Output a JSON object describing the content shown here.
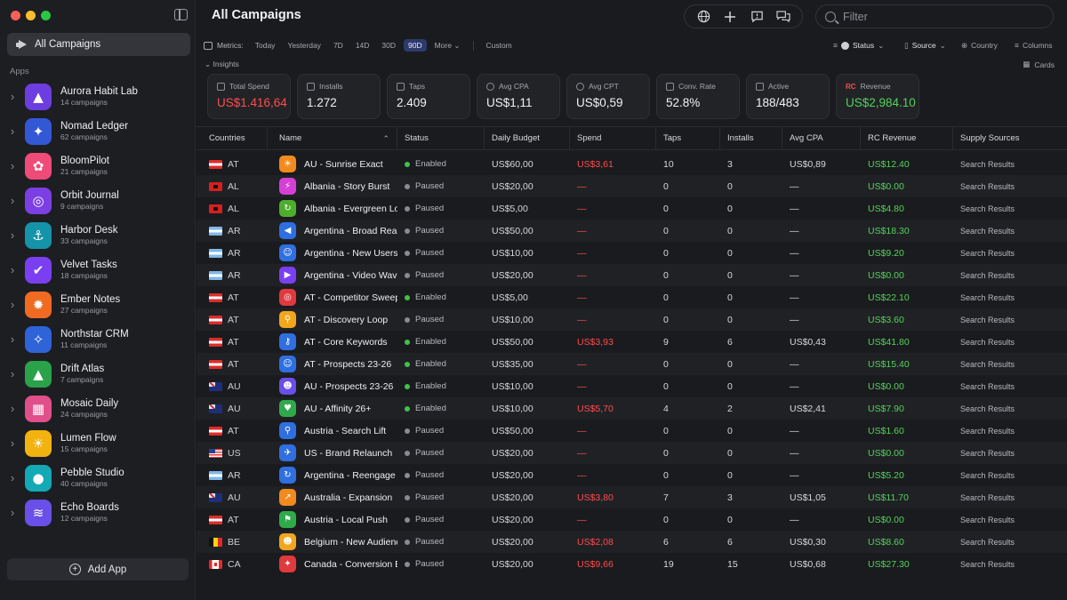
{
  "window": {
    "title": "All Campaigns"
  },
  "sidebar": {
    "all_campaigns_label": "All Campaigns",
    "apps_heading": "Apps",
    "add_app_label": "Add App",
    "apps": [
      {
        "name": "Aurora Habit Lab",
        "count": "14 campaigns",
        "icon": "aurora-icon",
        "color": "#6d3de0",
        "glyph": "▲"
      },
      {
        "name": "Nomad Ledger",
        "count": "62 campaigns",
        "icon": "compass-icon",
        "color": "#3358d6",
        "glyph": "✦"
      },
      {
        "name": "BloomPilot",
        "count": "21 campaigns",
        "icon": "flower-icon",
        "color": "#ee4b79",
        "glyph": "✿"
      },
      {
        "name": "Orbit Journal",
        "count": "9 campaigns",
        "icon": "orbit-icon",
        "color": "#7b3fe4",
        "glyph": "◎"
      },
      {
        "name": "Harbor Desk",
        "count": "33 campaigns",
        "icon": "anchor-icon",
        "color": "#1593a8",
        "glyph": "⚓"
      },
      {
        "name": "Velvet Tasks",
        "count": "18 campaigns",
        "icon": "check-icon",
        "color": "#7b3ff2",
        "glyph": "✔"
      },
      {
        "name": "Ember Notes",
        "count": "27 campaigns",
        "icon": "flame-icon",
        "color": "#f06a22",
        "glyph": "✹"
      },
      {
        "name": "Northstar CRM",
        "count": "11 campaigns",
        "icon": "star-icon",
        "color": "#2f63d8",
        "glyph": "✧"
      },
      {
        "name": "Drift Atlas",
        "count": "7 campaigns",
        "icon": "mountain-icon",
        "color": "#2aa24a",
        "glyph": "▲"
      },
      {
        "name": "Mosaic Daily",
        "count": "24 campaigns",
        "icon": "grid-icon",
        "color": "#e04f8a",
        "glyph": "▦"
      },
      {
        "name": "Lumen Flow",
        "count": "15 campaigns",
        "icon": "sun-icon",
        "color": "#f2b20f",
        "glyph": "☀"
      },
      {
        "name": "Pebble Studio",
        "count": "40 campaigns",
        "icon": "pebbles-icon",
        "color": "#13a9b5",
        "glyph": "●"
      },
      {
        "name": "Echo Boards",
        "count": "12 campaigns",
        "icon": "waveform-icon",
        "color": "#6a4fe8",
        "glyph": "≋"
      }
    ]
  },
  "search": {
    "placeholder": "Filter"
  },
  "metrics_bar": {
    "label": "Metrics:",
    "ranges": [
      "Today",
      "Yesterday",
      "7D",
      "14D",
      "30D",
      "90D"
    ],
    "active_range": "90D",
    "more_label": "More",
    "custom_label": "Custom"
  },
  "controls": {
    "status_label": "Status",
    "source_label": "Source",
    "country_label": "Country",
    "columns_label": "Columns",
    "insights_label": "Insights",
    "cards_label": "Cards"
  },
  "kpis": [
    {
      "label": "Total Spend",
      "value": "US$1.416,64",
      "tone": "red",
      "icon": "wallet-icon"
    },
    {
      "label": "Installs",
      "value": "1.272",
      "tone": "normal",
      "icon": "installs-icon"
    },
    {
      "label": "Taps",
      "value": "2.409",
      "tone": "normal",
      "icon": "tap-icon"
    },
    {
      "label": "Avg CPA",
      "value": "US$1,11",
      "tone": "normal",
      "icon": "cpa-icon"
    },
    {
      "label": "Avg CPT",
      "value": "US$0,59",
      "tone": "normal",
      "icon": "cpt-icon"
    },
    {
      "label": "Conv. Rate",
      "value": "52.8%",
      "tone": "normal",
      "icon": "percent-icon"
    },
    {
      "label": "Active",
      "value": "188/483",
      "tone": "normal",
      "icon": "megaphone-icon"
    },
    {
      "label": "Revenue",
      "value": "US$2,984.10",
      "tone": "green",
      "icon": "rc-logo-icon",
      "mark": "RC"
    }
  ],
  "table": {
    "columns": [
      "Countries",
      "Name",
      "Status",
      "Daily Budget",
      "Spend",
      "Taps",
      "Installs",
      "Avg CPA",
      "RC Revenue",
      "Supply Sources"
    ],
    "rows": [
      {
        "country": "AT",
        "flag": "at",
        "name": "AU - Sunrise Exact",
        "icon_color": "#f28a1e",
        "glyph": "☀",
        "status": "Enabled",
        "budget": "US$60,00",
        "spend": "US$3,61",
        "taps": "10",
        "installs": "3",
        "cpa": "US$0,89",
        "revenue": "US$12.40",
        "supply": "Search Results"
      },
      {
        "country": "AL",
        "flag": "al",
        "name": "Albania - Story Burst",
        "icon_color": "#d63fd6",
        "glyph": "⚡",
        "status": "Paused",
        "budget": "US$20,00",
        "spend": "—",
        "taps": "0",
        "installs": "0",
        "cpa": "—",
        "revenue": "US$0.00",
        "supply": "Search Results"
      },
      {
        "country": "AL",
        "flag": "al",
        "name": "Albania - Evergreen Loop",
        "icon_color": "#4cae2c",
        "glyph": "↻",
        "status": "Paused",
        "budget": "US$5,00",
        "spend": "—",
        "taps": "0",
        "installs": "0",
        "cpa": "—",
        "revenue": "US$4.80",
        "supply": "Search Results"
      },
      {
        "country": "AR",
        "flag": "ar",
        "name": "Argentina - Broad Reach",
        "icon_color": "#2f6fe0",
        "glyph": "◀",
        "status": "Paused",
        "budget": "US$50,00",
        "spend": "—",
        "taps": "0",
        "installs": "0",
        "cpa": "—",
        "revenue": "US$18.30",
        "supply": "Search Results"
      },
      {
        "country": "AR",
        "flag": "ar",
        "name": "Argentina - New Users",
        "icon_color": "#2f6fe0",
        "glyph": "☺",
        "status": "Paused",
        "budget": "US$10,00",
        "spend": "—",
        "taps": "0",
        "installs": "0",
        "cpa": "—",
        "revenue": "US$9.20",
        "supply": "Search Results"
      },
      {
        "country": "AR",
        "flag": "ar",
        "name": "Argentina - Video Wave",
        "icon_color": "#7b3ff2",
        "glyph": "▶",
        "status": "Paused",
        "budget": "US$20,00",
        "spend": "—",
        "taps": "0",
        "installs": "0",
        "cpa": "—",
        "revenue": "US$0.00",
        "supply": "Search Results"
      },
      {
        "country": "AT",
        "flag": "at",
        "name": "AT - Competitor Sweep",
        "icon_color": "#e0393e",
        "glyph": "◎",
        "status": "Enabled",
        "budget": "US$5,00",
        "spend": "—",
        "taps": "0",
        "installs": "0",
        "cpa": "—",
        "revenue": "US$22.10",
        "supply": "Search Results"
      },
      {
        "country": "AT",
        "flag": "at",
        "name": "AT - Discovery Loop",
        "icon_color": "#f2a61e",
        "glyph": "⚲",
        "status": "Paused",
        "budget": "US$10,00",
        "spend": "—",
        "taps": "0",
        "installs": "0",
        "cpa": "—",
        "revenue": "US$3.60",
        "supply": "Search Results"
      },
      {
        "country": "AT",
        "flag": "at",
        "name": "AT - Core Keywords",
        "icon_color": "#2f6fe0",
        "glyph": "⚷",
        "status": "Enabled",
        "budget": "US$50,00",
        "spend": "US$3,93",
        "taps": "9",
        "installs": "6",
        "cpa": "US$0,43",
        "revenue": "US$41.80",
        "supply": "Search Results"
      },
      {
        "country": "AT",
        "flag": "at",
        "name": "AT - Prospects 23-26",
        "icon_color": "#2f6fe0",
        "glyph": "☺",
        "status": "Enabled",
        "budget": "US$35,00",
        "spend": "—",
        "taps": "0",
        "installs": "0",
        "cpa": "—",
        "revenue": "US$15.40",
        "supply": "Search Results"
      },
      {
        "country": "AU",
        "flag": "au",
        "name": "AU - Prospects 23-26",
        "icon_color": "#6a4fe8",
        "glyph": "☻",
        "status": "Enabled",
        "budget": "US$10,00",
        "spend": "—",
        "taps": "0",
        "installs": "0",
        "cpa": "—",
        "revenue": "US$0.00",
        "supply": "Search Results"
      },
      {
        "country": "AU",
        "flag": "au",
        "name": "AU - Affinity 26+",
        "icon_color": "#2faa4a",
        "glyph": "♥",
        "status": "Enabled",
        "budget": "US$10,00",
        "spend": "US$5,70",
        "taps": "4",
        "installs": "2",
        "cpa": "US$2,41",
        "revenue": "US$7.90",
        "supply": "Search Results"
      },
      {
        "country": "AT",
        "flag": "at",
        "name": "Austria - Search Lift",
        "icon_color": "#2f6fe0",
        "glyph": "⚲",
        "status": "Paused",
        "budget": "US$50,00",
        "spend": "—",
        "taps": "0",
        "installs": "0",
        "cpa": "—",
        "revenue": "US$1.60",
        "supply": "Search Results"
      },
      {
        "country": "US",
        "flag": "us",
        "name": "US - Brand Relaunch",
        "icon_color": "#2f6fe0",
        "glyph": "✈",
        "status": "Paused",
        "budget": "US$20,00",
        "spend": "—",
        "taps": "0",
        "installs": "0",
        "cpa": "—",
        "revenue": "US$0.00",
        "supply": "Search Results"
      },
      {
        "country": "AR",
        "flag": "ar",
        "name": "Argentina - Reengage",
        "icon_color": "#2f6fe0",
        "glyph": "↻",
        "status": "Paused",
        "budget": "US$20,00",
        "spend": "—",
        "taps": "0",
        "installs": "0",
        "cpa": "—",
        "revenue": "US$5.20",
        "supply": "Search Results"
      },
      {
        "country": "AU",
        "flag": "au",
        "name": "Australia - Expansion",
        "icon_color": "#f28a1e",
        "glyph": "↗",
        "status": "Paused",
        "budget": "US$20,00",
        "spend": "US$3,80",
        "taps": "7",
        "installs": "3",
        "cpa": "US$1,05",
        "revenue": "US$11.70",
        "supply": "Search Results"
      },
      {
        "country": "AT",
        "flag": "at",
        "name": "Austria - Local Push",
        "icon_color": "#2faa4a",
        "glyph": "⚑",
        "status": "Paused",
        "budget": "US$20,00",
        "spend": "—",
        "taps": "0",
        "installs": "0",
        "cpa": "—",
        "revenue": "US$0.00",
        "supply": "Search Results"
      },
      {
        "country": "BE",
        "flag": "be",
        "name": "Belgium - New Audience",
        "icon_color": "#f2a61e",
        "glyph": "☻",
        "status": "Paused",
        "budget": "US$20,00",
        "spend": "US$2,08",
        "taps": "6",
        "installs": "6",
        "cpa": "US$0,30",
        "revenue": "US$8.60",
        "supply": "Search Results"
      },
      {
        "country": "CA",
        "flag": "ca",
        "name": "Canada - Conversion Boost",
        "icon_color": "#e0393e",
        "glyph": "✦",
        "status": "Paused",
        "budget": "US$20,00",
        "spend": "US$9,66",
        "taps": "19",
        "installs": "15",
        "cpa": "US$0,68",
        "revenue": "US$27.30",
        "supply": "Search Results"
      }
    ]
  }
}
